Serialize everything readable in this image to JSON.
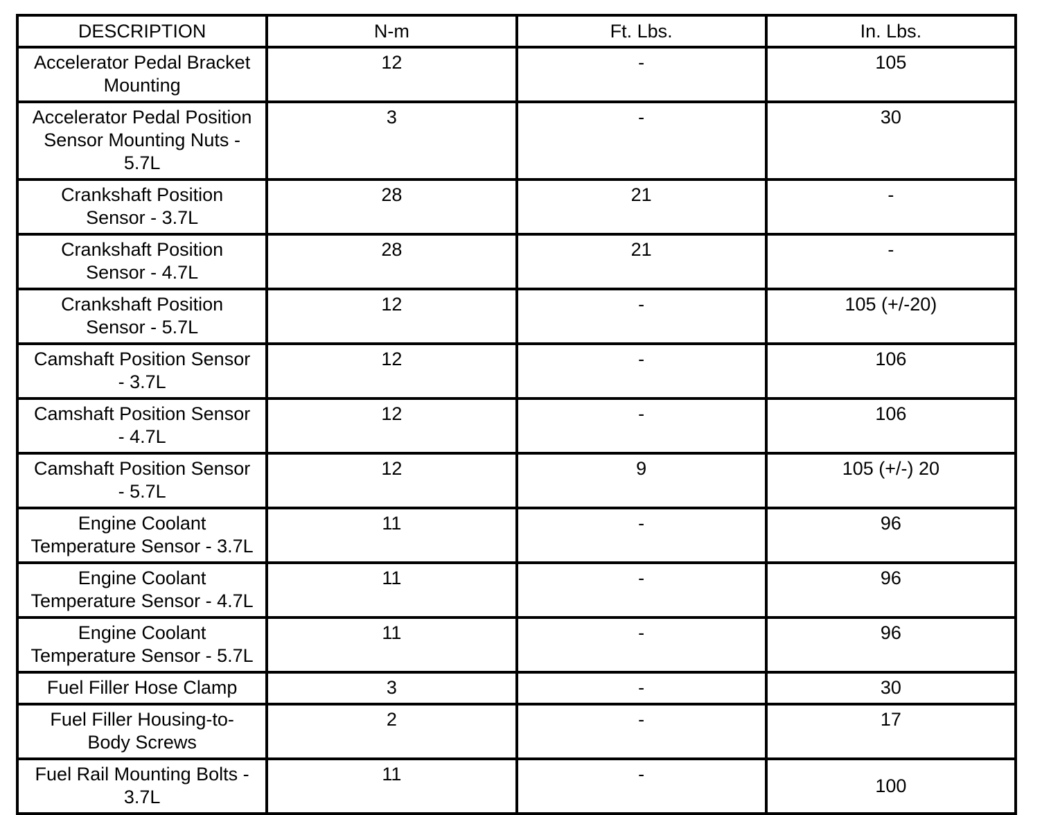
{
  "page": {
    "background_color": "#ffffff",
    "border_color": "#000000"
  },
  "table": {
    "title": "torque-specifications",
    "columns": [
      {
        "key": "description",
        "label": "DESCRIPTION"
      },
      {
        "key": "nm",
        "label": "N-m"
      },
      {
        "key": "ftlbs",
        "label": "Ft. Lbs."
      },
      {
        "key": "inlbs",
        "label": "In. Lbs."
      }
    ],
    "rows": [
      {
        "description": "Accelerator Pedal Bracket\nMounting",
        "nm": "12",
        "ftlbs": "-",
        "inlbs": "105"
      },
      {
        "description": "Accelerator Pedal Position\nSensor Mounting Nuts -\n5.7L",
        "nm": "3",
        "ftlbs": "-",
        "inlbs": "30"
      },
      {
        "description": "Crankshaft Position\nSensor - 3.7L",
        "nm": "28",
        "ftlbs": "21",
        "inlbs": "-"
      },
      {
        "description": "Crankshaft Position\nSensor - 4.7L",
        "nm": "28",
        "ftlbs": "21",
        "inlbs": "-"
      },
      {
        "description": "Crankshaft Position\nSensor - 5.7L",
        "nm": "12",
        "ftlbs": "-",
        "inlbs": "105 (+/-20)"
      },
      {
        "description": "Camshaft Position Sensor\n- 3.7L",
        "nm": "12",
        "ftlbs": "-",
        "inlbs": "106"
      },
      {
        "description": "Camshaft Position Sensor\n- 4.7L",
        "nm": "12",
        "ftlbs": "-",
        "inlbs": "106"
      },
      {
        "description": "Camshaft Position Sensor\n- 5.7L",
        "nm": "12",
        "ftlbs": "9",
        "inlbs": "105 (+/-) 20"
      },
      {
        "description": "Engine Coolant\nTemperature Sensor - 3.7L",
        "nm": "11",
        "ftlbs": "-",
        "inlbs": "96"
      },
      {
        "description": "Engine Coolant\nTemperature Sensor - 4.7L",
        "nm": "11",
        "ftlbs": "-",
        "inlbs": "96"
      },
      {
        "description": "Engine Coolant\nTemperature Sensor - 5.7L",
        "nm": "11",
        "ftlbs": "-",
        "inlbs": "96"
      },
      {
        "description": "Fuel Filler Hose Clamp",
        "nm": "3",
        "ftlbs": "-",
        "inlbs": "30"
      },
      {
        "description": "Fuel Filler Housing-to-\nBody Screws",
        "nm": "2",
        "ftlbs": "-",
        "inlbs": "17"
      },
      {
        "description": "Fuel Rail Mounting Bolts -\n3.7L",
        "nm": "11",
        "ftlbs": "-",
        "inlbs": "100"
      }
    ]
  }
}
